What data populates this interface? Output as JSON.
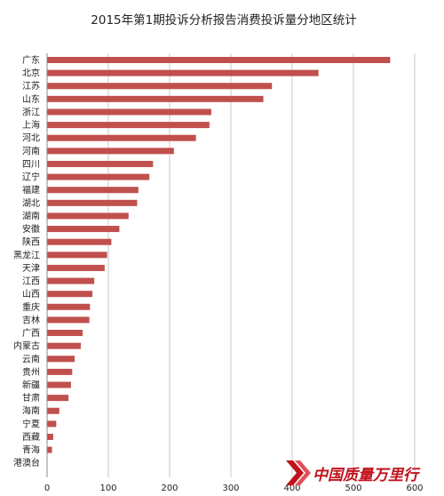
{
  "chart_data": {
    "type": "bar",
    "orientation": "horizontal",
    "title": "2015年第1期投诉分析报告消费投诉量分地区统计",
    "categories": [
      "广东",
      "北京",
      "江苏",
      "山东",
      "浙江",
      "上海",
      "河北",
      "河南",
      "四川",
      "辽宁",
      "福建",
      "湖北",
      "湖南",
      "安徽",
      "陕西",
      "黑龙江",
      "天津",
      "江西",
      "山西",
      "重庆",
      "吉林",
      "广西",
      "内蒙古",
      "云南",
      "贵州",
      "新疆",
      "甘肃",
      "海南",
      "宁夏",
      "西藏",
      "青海",
      "港澳台"
    ],
    "values": [
      560,
      443,
      367,
      353,
      268,
      265,
      243,
      207,
      173,
      167,
      149,
      147,
      133,
      118,
      105,
      98,
      94,
      77,
      74,
      70,
      69,
      58,
      55,
      45,
      41,
      39,
      35,
      20,
      15,
      10,
      8,
      0
    ],
    "xlim": [
      0,
      600
    ],
    "xticks": [
      0,
      100,
      200,
      300,
      400,
      500,
      600
    ],
    "xlabel": "",
    "ylabel": "",
    "grid": true,
    "bar_color": "#c0504d"
  },
  "watermark": {
    "text": "中国质量万里行",
    "color": "#c0121c"
  }
}
